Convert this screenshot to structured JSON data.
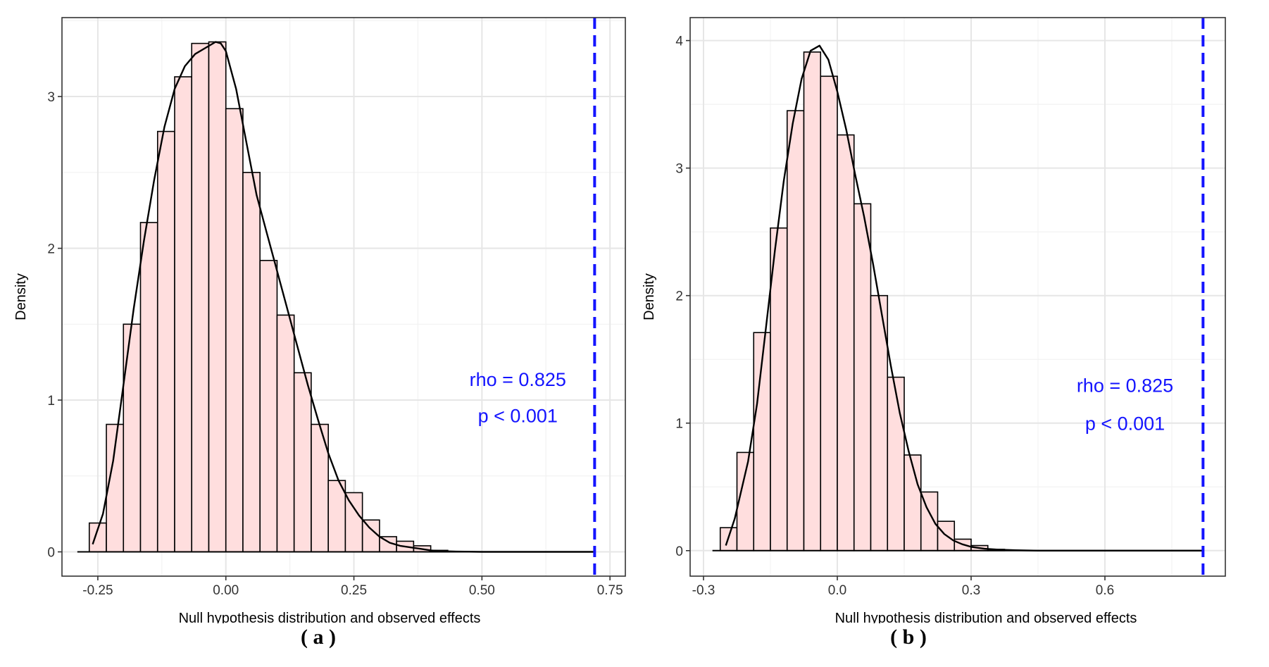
{
  "chart_data": [
    {
      "type": "bar",
      "panel_label": "( a )",
      "xlabel": "Null hypothesis distribution and observed effects",
      "ylabel": "Density",
      "xlim": [
        -0.32,
        0.78
      ],
      "ylim": [
        -0.16,
        3.52
      ],
      "x_ticks": [
        -0.25,
        0.0,
        0.25,
        0.5,
        0.75
      ],
      "x_tick_labels": [
        "-0.25",
        "0.00",
        "0.25",
        "0.50",
        "0.75"
      ],
      "y_ticks": [
        0,
        1,
        2,
        3
      ],
      "y_tick_labels": [
        "0",
        "1",
        "2",
        "3"
      ],
      "bin_width": 0.0333,
      "bins": [
        {
          "x0": -0.3,
          "density": 0.0
        },
        {
          "x0": -0.2667,
          "density": 0.19
        },
        {
          "x0": -0.2333,
          "density": 0.84
        },
        {
          "x0": -0.2,
          "density": 1.5
        },
        {
          "x0": -0.1667,
          "density": 2.17
        },
        {
          "x0": -0.1333,
          "density": 2.77
        },
        {
          "x0": -0.1,
          "density": 3.13
        },
        {
          "x0": -0.0667,
          "density": 3.35
        },
        {
          "x0": -0.0333,
          "density": 3.36
        },
        {
          "x0": 0.0,
          "density": 2.92
        },
        {
          "x0": 0.0333,
          "density": 2.5
        },
        {
          "x0": 0.0667,
          "density": 1.92
        },
        {
          "x0": 0.1,
          "density": 1.56
        },
        {
          "x0": 0.1333,
          "density": 1.18
        },
        {
          "x0": 0.1667,
          "density": 0.84
        },
        {
          "x0": 0.2,
          "density": 0.47
        },
        {
          "x0": 0.2333,
          "density": 0.39
        },
        {
          "x0": 0.2667,
          "density": 0.21
        },
        {
          "x0": 0.3,
          "density": 0.1
        },
        {
          "x0": 0.3333,
          "density": 0.07
        },
        {
          "x0": 0.3667,
          "density": 0.04
        },
        {
          "x0": 0.4,
          "density": 0.01
        },
        {
          "x0": 0.4333,
          "density": 0.0
        },
        {
          "x0": 0.4667,
          "density": 0.0
        }
      ],
      "density_curve": {
        "x": [
          -0.26,
          -0.24,
          -0.22,
          -0.2,
          -0.18,
          -0.16,
          -0.14,
          -0.12,
          -0.1,
          -0.08,
          -0.06,
          -0.04,
          -0.02,
          -0.01,
          0.0,
          0.02,
          0.04,
          0.06,
          0.08,
          0.1,
          0.12,
          0.14,
          0.16,
          0.18,
          0.2,
          0.22,
          0.24,
          0.26,
          0.28,
          0.3,
          0.32,
          0.34,
          0.36,
          0.38,
          0.4,
          0.42,
          0.45,
          0.5,
          0.55,
          0.6,
          0.65,
          0.7,
          0.72
        ],
        "y": [
          0.05,
          0.25,
          0.6,
          1.1,
          1.6,
          2.05,
          2.45,
          2.8,
          3.05,
          3.2,
          3.28,
          3.32,
          3.36,
          3.35,
          3.3,
          3.05,
          2.7,
          2.35,
          2.1,
          1.85,
          1.6,
          1.35,
          1.1,
          0.87,
          0.65,
          0.47,
          0.34,
          0.24,
          0.16,
          0.1,
          0.06,
          0.04,
          0.03,
          0.02,
          0.01,
          0.005,
          0.002,
          0.0,
          0.0,
          0.0,
          0.0,
          0.0,
          0.0
        ]
      },
      "flat_line_start_x": -0.29,
      "observed_x": 0.72,
      "annotation": [
        "rho = 0.825",
        "p < 0.001"
      ],
      "annotation_x": 0.57,
      "annotation_y": [
        1.14,
        0.9
      ],
      "grid": true
    },
    {
      "type": "bar",
      "panel_label": "( b )",
      "xlabel": "Null hypothesis distribution and observed effects",
      "ylabel": "Density",
      "xlim": [
        -0.33,
        0.87
      ],
      "ylim": [
        -0.2,
        4.18
      ],
      "x_ticks": [
        -0.3,
        0.0,
        0.3,
        0.6
      ],
      "x_tick_labels": [
        "-0.3",
        "0.0",
        "0.3",
        "0.6"
      ],
      "y_ticks": [
        0,
        1,
        2,
        3,
        4
      ],
      "y_tick_labels": [
        "0",
        "1",
        "2",
        "3",
        "4"
      ],
      "bin_width": 0.0375,
      "bins": [
        {
          "x0": -0.3,
          "density": 0.0
        },
        {
          "x0": -0.2625,
          "density": 0.18
        },
        {
          "x0": -0.225,
          "density": 0.77
        },
        {
          "x0": -0.1875,
          "density": 1.71
        },
        {
          "x0": -0.15,
          "density": 2.53
        },
        {
          "x0": -0.1125,
          "density": 3.45
        },
        {
          "x0": -0.075,
          "density": 3.91
        },
        {
          "x0": -0.0375,
          "density": 3.72
        },
        {
          "x0": 0.0,
          "density": 3.26
        },
        {
          "x0": 0.0375,
          "density": 2.72
        },
        {
          "x0": 0.075,
          "density": 2.0
        },
        {
          "x0": 0.1125,
          "density": 1.36
        },
        {
          "x0": 0.15,
          "density": 0.75
        },
        {
          "x0": 0.1875,
          "density": 0.46
        },
        {
          "x0": 0.225,
          "density": 0.23
        },
        {
          "x0": 0.2625,
          "density": 0.09
        },
        {
          "x0": 0.3,
          "density": 0.04
        },
        {
          "x0": 0.3375,
          "density": 0.01
        },
        {
          "x0": 0.375,
          "density": 0.0
        }
      ],
      "density_curve": {
        "x": [
          -0.25,
          -0.23,
          -0.2,
          -0.18,
          -0.16,
          -0.14,
          -0.12,
          -0.1,
          -0.08,
          -0.06,
          -0.04,
          -0.02,
          0.0,
          0.02,
          0.04,
          0.06,
          0.08,
          0.1,
          0.12,
          0.14,
          0.16,
          0.18,
          0.2,
          0.22,
          0.24,
          0.26,
          0.28,
          0.3,
          0.33,
          0.36,
          0.4,
          0.45,
          0.5,
          0.6,
          0.7,
          0.8,
          0.82
        ],
        "y": [
          0.04,
          0.25,
          0.7,
          1.15,
          1.75,
          2.35,
          2.9,
          3.35,
          3.7,
          3.92,
          3.96,
          3.85,
          3.6,
          3.3,
          2.95,
          2.62,
          2.25,
          1.85,
          1.45,
          1.08,
          0.78,
          0.52,
          0.34,
          0.21,
          0.13,
          0.08,
          0.05,
          0.03,
          0.015,
          0.008,
          0.003,
          0.0,
          0.0,
          0.0,
          0.0,
          0.0,
          0.0
        ]
      },
      "flat_line_start_x": -0.28,
      "observed_x": 0.82,
      "annotation": [
        "rho = 0.825",
        "p < 0.001"
      ],
      "annotation_x": 0.645,
      "annotation_y": [
        1.3,
        1.0
      ],
      "grid": true
    }
  ],
  "colors": {
    "bar_fill": "#ffdede",
    "bar_stroke": "#000000",
    "curve": "#000000",
    "observed_line": "#1414ff",
    "annotation": "#1414ff",
    "grid_major": "#e6e6e6",
    "grid_minor": "#f2f2f2",
    "frame": "#333333"
  }
}
